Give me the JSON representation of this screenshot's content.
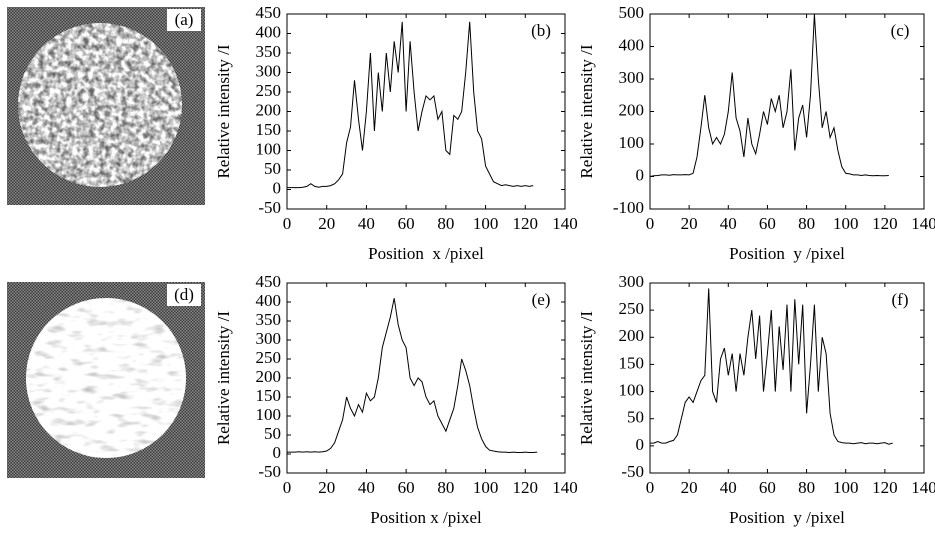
{
  "chart_data": [
    {
      "type": "image",
      "label": "(a)"
    },
    {
      "type": "line",
      "label": "(b)",
      "xlabel": "Position  x /pixel",
      "ylabel": "Relative intensity /I",
      "color": "#000000",
      "xlim": [
        0,
        140
      ],
      "xticks": [
        0,
        20,
        40,
        60,
        80,
        100,
        120,
        140
      ],
      "ylim": [
        -50,
        450
      ],
      "yticks": [
        -50,
        0,
        50,
        100,
        150,
        200,
        250,
        300,
        350,
        400,
        450
      ],
      "x": [
        0,
        2,
        4,
        6,
        8,
        10,
        12,
        14,
        16,
        18,
        20,
        22,
        24,
        26,
        28,
        30,
        32,
        34,
        36,
        38,
        40,
        42,
        44,
        46,
        48,
        50,
        52,
        54,
        56,
        58,
        60,
        62,
        64,
        66,
        68,
        70,
        72,
        74,
        76,
        78,
        80,
        82,
        84,
        86,
        88,
        90,
        92,
        94,
        96,
        98,
        100,
        102,
        104,
        106,
        108,
        110,
        112,
        114,
        116,
        118,
        120,
        122,
        124
      ],
      "values": [
        5,
        5,
        5,
        5,
        6,
        8,
        15,
        8,
        6,
        8,
        8,
        10,
        15,
        25,
        40,
        120,
        160,
        280,
        180,
        100,
        200,
        350,
        150,
        300,
        200,
        350,
        250,
        380,
        300,
        430,
        200,
        380,
        250,
        150,
        200,
        240,
        230,
        240,
        180,
        200,
        100,
        90,
        190,
        180,
        200,
        300,
        430,
        250,
        150,
        130,
        60,
        40,
        20,
        15,
        10,
        12,
        10,
        8,
        10,
        8,
        10,
        8,
        10
      ]
    },
    {
      "type": "line",
      "label": "(c)",
      "xlabel": "Position  y /pixel",
      "ylabel": "Relative intensity /I",
      "color": "#000000",
      "xlim": [
        0,
        140
      ],
      "xticks": [
        0,
        20,
        40,
        60,
        80,
        100,
        120,
        140
      ],
      "ylim": [
        -100,
        500
      ],
      "yticks": [
        -100,
        0,
        100,
        200,
        300,
        400,
        500
      ],
      "x": [
        0,
        2,
        4,
        6,
        8,
        10,
        12,
        14,
        16,
        18,
        20,
        22,
        24,
        26,
        28,
        30,
        32,
        34,
        36,
        38,
        40,
        42,
        44,
        46,
        48,
        50,
        52,
        54,
        56,
        58,
        60,
        62,
        64,
        66,
        68,
        70,
        72,
        74,
        76,
        78,
        80,
        82,
        84,
        86,
        88,
        90,
        92,
        94,
        96,
        98,
        100,
        102,
        104,
        106,
        108,
        110,
        112,
        114,
        116,
        118,
        120,
        122
      ],
      "values": [
        0,
        2,
        3,
        5,
        5,
        4,
        6,
        5,
        5,
        6,
        5,
        10,
        60,
        150,
        250,
        150,
        100,
        120,
        100,
        130,
        200,
        320,
        180,
        140,
        60,
        180,
        100,
        70,
        130,
        200,
        160,
        240,
        200,
        250,
        150,
        200,
        330,
        80,
        180,
        220,
        120,
        250,
        500,
        300,
        150,
        200,
        120,
        150,
        80,
        30,
        10,
        8,
        5,
        5,
        3,
        5,
        3,
        2,
        3,
        2,
        2,
        3
      ]
    },
    {
      "type": "image",
      "label": "(d)"
    },
    {
      "type": "line",
      "label": "(e)",
      "xlabel": "Position x /pixel",
      "ylabel": "Relative intensity /I",
      "color": "#000000",
      "xlim": [
        0,
        140
      ],
      "xticks": [
        0,
        20,
        40,
        60,
        80,
        100,
        120,
        140
      ],
      "ylim": [
        -50,
        450
      ],
      "yticks": [
        -50,
        0,
        50,
        100,
        150,
        200,
        250,
        300,
        350,
        400,
        450
      ],
      "x": [
        0,
        2,
        4,
        6,
        8,
        10,
        12,
        14,
        16,
        18,
        20,
        22,
        24,
        26,
        28,
        30,
        32,
        34,
        36,
        38,
        40,
        42,
        44,
        46,
        48,
        50,
        52,
        54,
        56,
        58,
        60,
        62,
        64,
        66,
        68,
        70,
        72,
        74,
        76,
        78,
        80,
        82,
        84,
        86,
        88,
        90,
        92,
        94,
        96,
        98,
        100,
        102,
        104,
        106,
        108,
        110,
        112,
        114,
        116,
        118,
        120,
        122,
        124,
        126
      ],
      "values": [
        5,
        5,
        5,
        6,
        5,
        6,
        5,
        6,
        5,
        6,
        8,
        15,
        30,
        60,
        90,
        150,
        120,
        100,
        130,
        110,
        160,
        140,
        150,
        200,
        280,
        320,
        360,
        410,
        340,
        300,
        280,
        200,
        180,
        200,
        190,
        150,
        130,
        140,
        100,
        80,
        60,
        90,
        120,
        180,
        250,
        220,
        180,
        120,
        70,
        40,
        20,
        10,
        8,
        6,
        5,
        5,
        4,
        5,
        4,
        4,
        5,
        4,
        4,
        5
      ]
    },
    {
      "type": "line",
      "label": "(f)",
      "xlabel": "Position  y /pixel",
      "ylabel": "Relative intensity /I",
      "color": "#000000",
      "xlim": [
        0,
        140
      ],
      "xticks": [
        0,
        20,
        40,
        60,
        80,
        100,
        120,
        140
      ],
      "ylim": [
        -50,
        300
      ],
      "yticks": [
        -50,
        0,
        50,
        100,
        150,
        200,
        250,
        300
      ],
      "x": [
        0,
        2,
        4,
        6,
        8,
        10,
        12,
        14,
        16,
        18,
        20,
        22,
        24,
        26,
        28,
        30,
        32,
        34,
        36,
        38,
        40,
        42,
        44,
        46,
        48,
        50,
        52,
        54,
        56,
        58,
        60,
        62,
        64,
        66,
        68,
        70,
        72,
        74,
        76,
        78,
        80,
        82,
        84,
        86,
        88,
        90,
        92,
        94,
        96,
        98,
        100,
        102,
        104,
        106,
        108,
        110,
        112,
        114,
        116,
        118,
        120,
        122,
        124
      ],
      "values": [
        5,
        5,
        8,
        5,
        5,
        8,
        10,
        20,
        50,
        80,
        90,
        80,
        100,
        120,
        130,
        290,
        100,
        80,
        160,
        180,
        130,
        170,
        100,
        170,
        130,
        200,
        250,
        160,
        240,
        100,
        170,
        250,
        100,
        220,
        140,
        260,
        100,
        270,
        150,
        260,
        60,
        150,
        260,
        100,
        200,
        170,
        60,
        20,
        8,
        6,
        5,
        5,
        4,
        5,
        6,
        4,
        5,
        5,
        4,
        5,
        6,
        3,
        5
      ]
    }
  ]
}
